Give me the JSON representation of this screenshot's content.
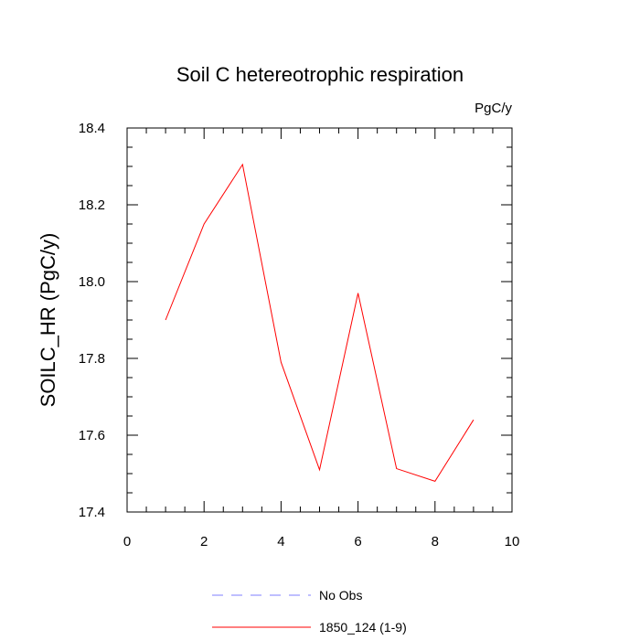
{
  "chart_data": {
    "type": "line",
    "title": "Soil C hetereotrophic respiration",
    "units": "PgC/y",
    "xlabel": "",
    "ylabel": "SOILC_HR  (PgC/y)",
    "xlim": [
      0,
      10
    ],
    "ylim": [
      17.4,
      18.4
    ],
    "xticks": [
      0,
      2,
      4,
      6,
      8,
      10
    ],
    "xtick_labels": [
      "0",
      "2",
      "4",
      "6",
      "8",
      "10"
    ],
    "yticks": [
      17.4,
      17.6,
      17.8,
      18.0,
      18.2,
      18.4
    ],
    "ytick_labels": [
      "17.4",
      "17.6",
      "17.8",
      "18.0",
      "18.2",
      "18.4"
    ],
    "grid": false,
    "legend_position": "bottom",
    "series": [
      {
        "name": "1850_124 (1-9)",
        "color": "#ff0000",
        "x": [
          1,
          2,
          3,
          4,
          5,
          6,
          7,
          8,
          9
        ],
        "values": [
          17.9,
          18.15,
          18.305,
          17.79,
          17.51,
          17.97,
          17.513,
          17.48,
          17.64
        ]
      }
    ],
    "legend": [
      {
        "label": "No Obs",
        "color": "#7f7fff",
        "style": "dashed"
      },
      {
        "label": "1850_124 (1-9)",
        "color": "#ff0000",
        "style": "solid"
      }
    ]
  }
}
